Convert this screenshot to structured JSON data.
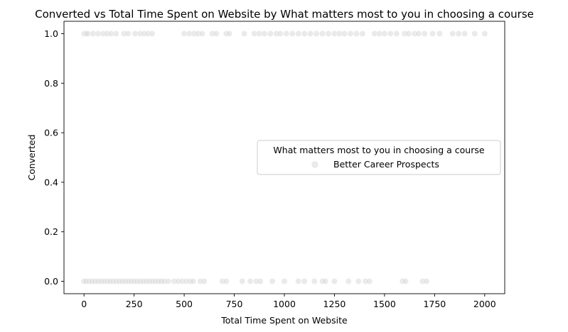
{
  "chart_data": {
    "type": "scatter",
    "title": "Converted vs Total Time Spent on Website by What matters most to you in choosing a course",
    "xlabel": "Total Time Spent on Website",
    "ylabel": "Converted",
    "xlim": [
      -100,
      2100
    ],
    "ylim": [
      -0.05,
      1.05
    ],
    "x_ticks": [
      0,
      250,
      500,
      750,
      1000,
      1250,
      1500,
      1750,
      2000
    ],
    "y_ticks": [
      0.0,
      0.2,
      0.4,
      0.6,
      0.8,
      1.0
    ],
    "x_tick_labels": [
      "0",
      "250",
      "500",
      "750",
      "1000",
      "1250",
      "1500",
      "1750",
      "2000"
    ],
    "y_tick_labels": [
      "0.0",
      "0.2",
      "0.4",
      "0.6",
      "0.8",
      "1.0"
    ],
    "grid": false,
    "legend": {
      "title": "What matters most to you in choosing a course",
      "placement": "center-right",
      "entries": [
        {
          "name": "Better Career Prospects",
          "color": "#d6d6d6"
        }
      ]
    },
    "series": [
      {
        "name": "Better Career Prospects",
        "color": "#d6d6d6",
        "points": [
          {
            "x": 0,
            "y": 1
          },
          {
            "x": 10,
            "y": 1
          },
          {
            "x": 20,
            "y": 1
          },
          {
            "x": 45,
            "y": 1
          },
          {
            "x": 70,
            "y": 1
          },
          {
            "x": 95,
            "y": 1
          },
          {
            "x": 115,
            "y": 1
          },
          {
            "x": 135,
            "y": 1
          },
          {
            "x": 160,
            "y": 1
          },
          {
            "x": 200,
            "y": 1
          },
          {
            "x": 220,
            "y": 1
          },
          {
            "x": 255,
            "y": 1
          },
          {
            "x": 280,
            "y": 1
          },
          {
            "x": 300,
            "y": 1
          },
          {
            "x": 320,
            "y": 1
          },
          {
            "x": 340,
            "y": 1
          },
          {
            "x": 500,
            "y": 1
          },
          {
            "x": 525,
            "y": 1
          },
          {
            "x": 550,
            "y": 1
          },
          {
            "x": 570,
            "y": 1
          },
          {
            "x": 590,
            "y": 1
          },
          {
            "x": 640,
            "y": 1
          },
          {
            "x": 660,
            "y": 1
          },
          {
            "x": 710,
            "y": 1
          },
          {
            "x": 725,
            "y": 1
          },
          {
            "x": 800,
            "y": 1
          },
          {
            "x": 850,
            "y": 1
          },
          {
            "x": 875,
            "y": 1
          },
          {
            "x": 900,
            "y": 1
          },
          {
            "x": 930,
            "y": 1
          },
          {
            "x": 960,
            "y": 1
          },
          {
            "x": 980,
            "y": 1
          },
          {
            "x": 1010,
            "y": 1
          },
          {
            "x": 1040,
            "y": 1
          },
          {
            "x": 1070,
            "y": 1
          },
          {
            "x": 1100,
            "y": 1
          },
          {
            "x": 1130,
            "y": 1
          },
          {
            "x": 1160,
            "y": 1
          },
          {
            "x": 1190,
            "y": 1
          },
          {
            "x": 1220,
            "y": 1
          },
          {
            "x": 1250,
            "y": 1
          },
          {
            "x": 1275,
            "y": 1
          },
          {
            "x": 1300,
            "y": 1
          },
          {
            "x": 1330,
            "y": 1
          },
          {
            "x": 1360,
            "y": 1
          },
          {
            "x": 1390,
            "y": 1
          },
          {
            "x": 1450,
            "y": 1
          },
          {
            "x": 1475,
            "y": 1
          },
          {
            "x": 1500,
            "y": 1
          },
          {
            "x": 1530,
            "y": 1
          },
          {
            "x": 1560,
            "y": 1
          },
          {
            "x": 1600,
            "y": 1
          },
          {
            "x": 1620,
            "y": 1
          },
          {
            "x": 1650,
            "y": 1
          },
          {
            "x": 1670,
            "y": 1
          },
          {
            "x": 1700,
            "y": 1
          },
          {
            "x": 1740,
            "y": 1
          },
          {
            "x": 1775,
            "y": 1
          },
          {
            "x": 1840,
            "y": 1
          },
          {
            "x": 1870,
            "y": 1
          },
          {
            "x": 1900,
            "y": 1
          },
          {
            "x": 1950,
            "y": 1
          },
          {
            "x": 2000,
            "y": 1
          },
          {
            "x": 0,
            "y": 0
          },
          {
            "x": 10,
            "y": 0
          },
          {
            "x": 25,
            "y": 0
          },
          {
            "x": 40,
            "y": 0
          },
          {
            "x": 55,
            "y": 0
          },
          {
            "x": 70,
            "y": 0
          },
          {
            "x": 85,
            "y": 0
          },
          {
            "x": 100,
            "y": 0
          },
          {
            "x": 115,
            "y": 0
          },
          {
            "x": 130,
            "y": 0
          },
          {
            "x": 145,
            "y": 0
          },
          {
            "x": 160,
            "y": 0
          },
          {
            "x": 175,
            "y": 0
          },
          {
            "x": 190,
            "y": 0
          },
          {
            "x": 205,
            "y": 0
          },
          {
            "x": 220,
            "y": 0
          },
          {
            "x": 235,
            "y": 0
          },
          {
            "x": 250,
            "y": 0
          },
          {
            "x": 265,
            "y": 0
          },
          {
            "x": 280,
            "y": 0
          },
          {
            "x": 295,
            "y": 0
          },
          {
            "x": 310,
            "y": 0
          },
          {
            "x": 325,
            "y": 0
          },
          {
            "x": 340,
            "y": 0
          },
          {
            "x": 355,
            "y": 0
          },
          {
            "x": 370,
            "y": 0
          },
          {
            "x": 385,
            "y": 0
          },
          {
            "x": 400,
            "y": 0
          },
          {
            "x": 420,
            "y": 0
          },
          {
            "x": 450,
            "y": 0
          },
          {
            "x": 470,
            "y": 0
          },
          {
            "x": 490,
            "y": 0
          },
          {
            "x": 510,
            "y": 0
          },
          {
            "x": 530,
            "y": 0
          },
          {
            "x": 545,
            "y": 0
          },
          {
            "x": 580,
            "y": 0
          },
          {
            "x": 600,
            "y": 0
          },
          {
            "x": 690,
            "y": 0
          },
          {
            "x": 710,
            "y": 0
          },
          {
            "x": 790,
            "y": 0
          },
          {
            "x": 830,
            "y": 0
          },
          {
            "x": 860,
            "y": 0
          },
          {
            "x": 880,
            "y": 0
          },
          {
            "x": 940,
            "y": 0
          },
          {
            "x": 1000,
            "y": 0
          },
          {
            "x": 1070,
            "y": 0
          },
          {
            "x": 1100,
            "y": 0
          },
          {
            "x": 1150,
            "y": 0
          },
          {
            "x": 1190,
            "y": 0
          },
          {
            "x": 1205,
            "y": 0
          },
          {
            "x": 1250,
            "y": 0
          },
          {
            "x": 1320,
            "y": 0
          },
          {
            "x": 1370,
            "y": 0
          },
          {
            "x": 1405,
            "y": 0
          },
          {
            "x": 1425,
            "y": 0
          },
          {
            "x": 1590,
            "y": 0
          },
          {
            "x": 1605,
            "y": 0
          },
          {
            "x": 1690,
            "y": 0
          },
          {
            "x": 1710,
            "y": 0
          }
        ]
      }
    ]
  }
}
